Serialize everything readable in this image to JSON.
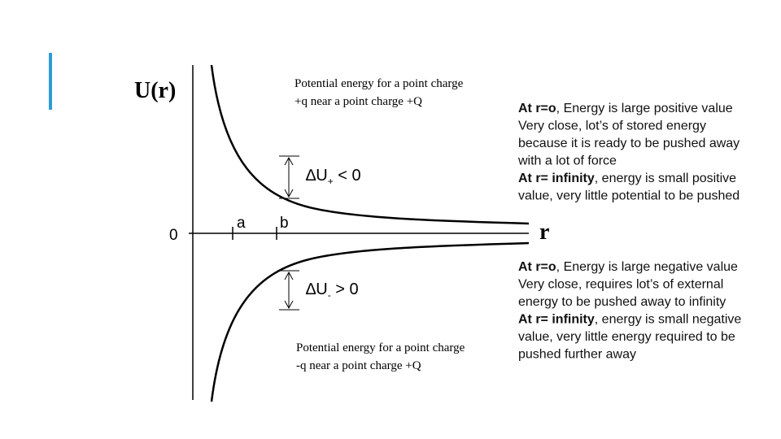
{
  "y_axis_label": "U(r)",
  "x_axis_label": "r",
  "origin_label": "0",
  "points": [
    "a",
    "b"
  ],
  "top_caption": [
    "Potential energy for a point charge",
    "+q near a point charge +Q"
  ],
  "bottom_caption": [
    "Potential energy for a point charge",
    "-q near a point charge +Q"
  ],
  "top_delta": {
    "symbol": "∆U",
    "sub": "+",
    "relation": " < 0"
  },
  "bottom_delta": {
    "symbol": "∆U",
    "sub": "-",
    "relation": " > 0"
  },
  "notes": [
    {
      "lines": [
        {
          "bold": "At r=o",
          "text": ", Energy is large positive value"
        },
        {
          "text": "Very close, lot’s of stored energy"
        },
        {
          "text": "because it is ready to be pushed away"
        },
        {
          "text": "with a lot of force"
        },
        {
          "bold": "At r= infinity",
          "text": ", energy is small positive"
        },
        {
          "text": "value, very little potential to be pushed"
        }
      ]
    },
    {
      "lines": [
        {
          "bold": "At r=o",
          "text": ", Energy is large negative value"
        },
        {
          "text": "Very close, requires lot’s of external"
        },
        {
          "text": "energy to be pushed away to infinity"
        },
        {
          "bold": "At r= infinity",
          "text": ", energy is small negative"
        },
        {
          "text": "value, very little energy required to be"
        },
        {
          "text": "pushed further away"
        }
      ]
    }
  ]
}
